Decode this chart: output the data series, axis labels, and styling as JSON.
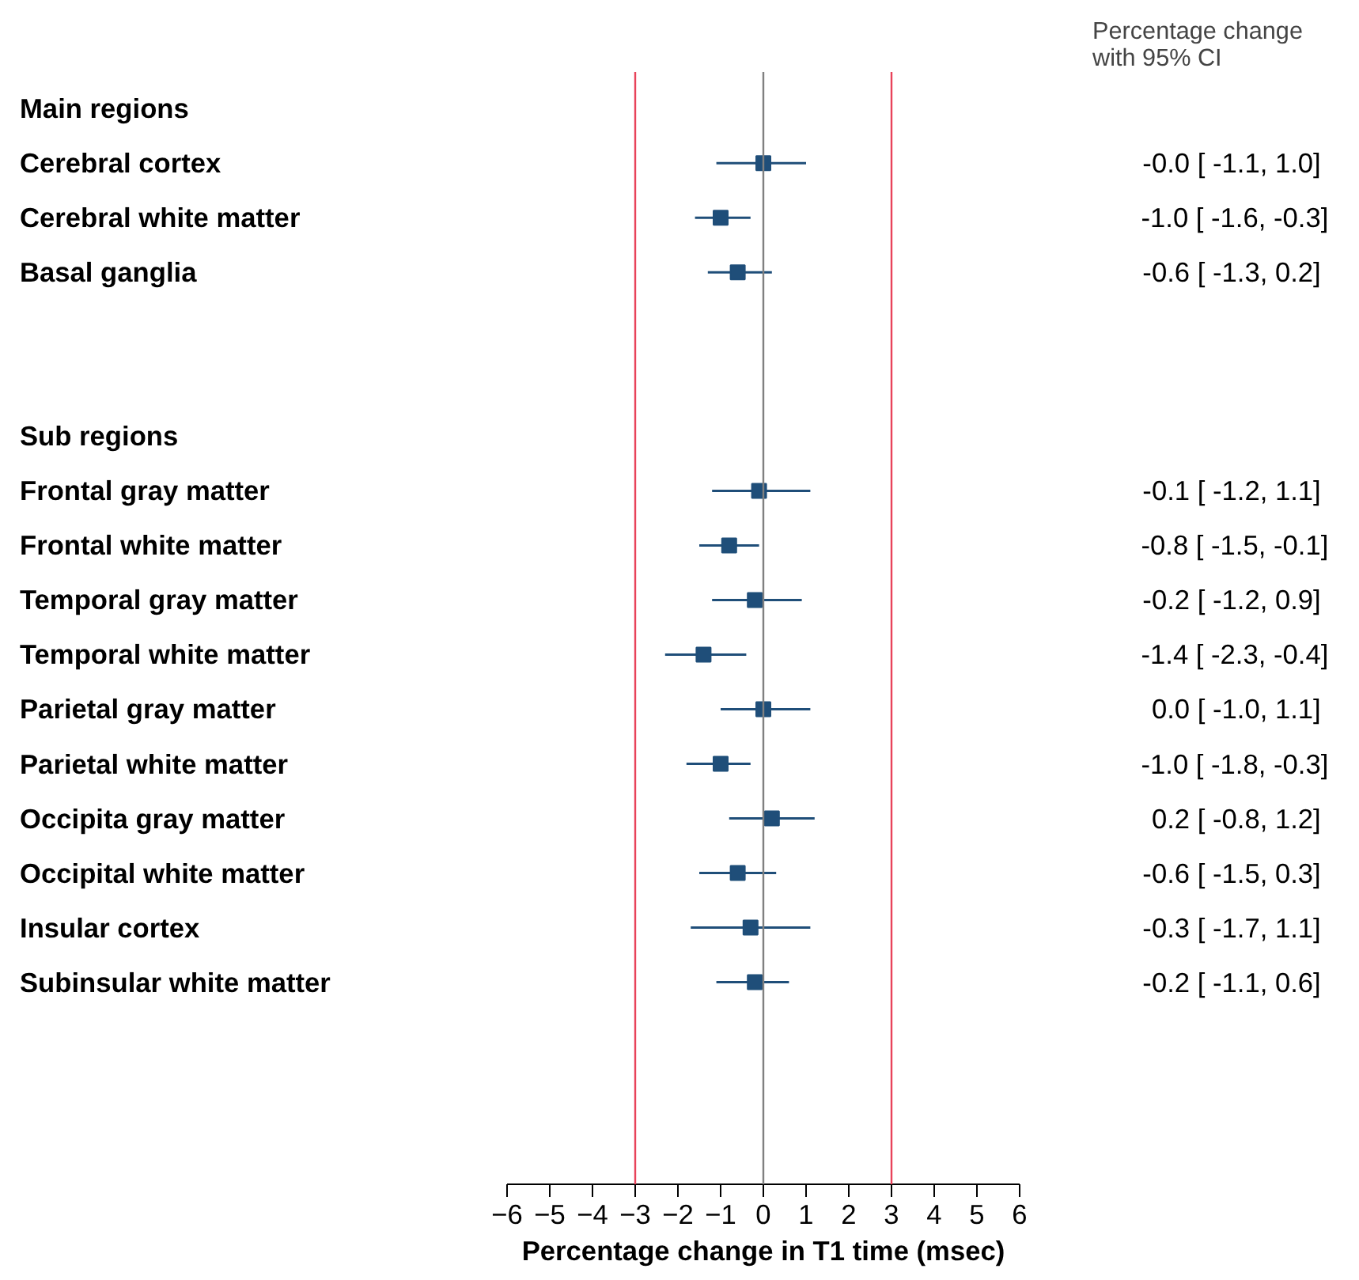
{
  "chart_data": {
    "type": "scatter",
    "orientation": "horizontal",
    "xlabel": "Percentage change in T1 time (msec)",
    "categories": [
      "Main regions",
      "Cerebral cortex",
      "Cerebral white matter",
      "Basal ganglia",
      null,
      null,
      "Sub regions",
      "Frontal gray matter",
      "Frontal white matter",
      "Temporal gray matter",
      "Temporal white matter",
      "Parietal gray matter",
      "Parietal white matter",
      "Occipita gray matter",
      "Occipital white matter",
      "Insular cortex",
      "Subinsular white matter",
      null,
      null,
      null
    ],
    "values": [
      null,
      -0.0,
      -1.0,
      -0.6,
      null,
      null,
      null,
      -0.1,
      -0.8,
      -0.2,
      -1.4,
      0.0,
      -1.0,
      0.2,
      -0.6,
      -0.3,
      -0.2,
      null,
      null,
      null
    ],
    "errors": [
      null,
      [
        -1.1,
        1.0
      ],
      [
        -1.6,
        -0.3
      ],
      [
        -1.3,
        0.2
      ],
      null,
      null,
      null,
      [
        -1.2,
        1.1
      ],
      [
        -1.5,
        -0.1
      ],
      [
        -1.2,
        0.9
      ],
      [
        -2.3,
        -0.4
      ],
      [
        -1.0,
        1.1
      ],
      [
        -1.8,
        -0.3
      ],
      [
        -0.8,
        1.2
      ],
      [
        -1.5,
        0.3
      ],
      [
        -1.7,
        1.1
      ],
      [
        -1.1,
        0.6
      ],
      null,
      null,
      null
    ],
    "value_labels": [
      null,
      "-0.0 [ -1.1,   1.0]",
      "-1.0 [ -1.6,  -0.3]",
      "-0.6 [ -1.3,   0.2]",
      null,
      null,
      null,
      "-0.1 [ -1.2,   1.1]",
      "-0.8 [ -1.5,  -0.1]",
      "-0.2 [ -1.2,   0.9]",
      "-1.4 [ -2.3,  -0.4]",
      "0.0 [ -1.0,   1.1]",
      "-1.0 [ -1.8,  -0.3]",
      "0.2 [ -0.8,   1.2]",
      "-0.6 [ -1.5,   0.3]",
      "-0.3 [ -1.7,   1.1]",
      "-0.2 [ -1.1,   0.6]",
      null,
      null,
      null
    ],
    "color": "#1f4e79",
    "marker": "square",
    "xlim": [
      -6,
      6
    ],
    "xticks": [
      -6,
      -5,
      -4,
      -3,
      -2,
      -1,
      0,
      1,
      2,
      3,
      4,
      5,
      6
    ],
    "ref_lines": [
      {
        "axis": "x",
        "value": -3,
        "color": "#e8435a"
      },
      {
        "axis": "x",
        "value": 0,
        "color": "#808080"
      },
      {
        "axis": "x",
        "value": 3,
        "color": "#e8435a"
      }
    ],
    "annotations": [
      "Percentage change\nwith 95% CI"
    ]
  }
}
